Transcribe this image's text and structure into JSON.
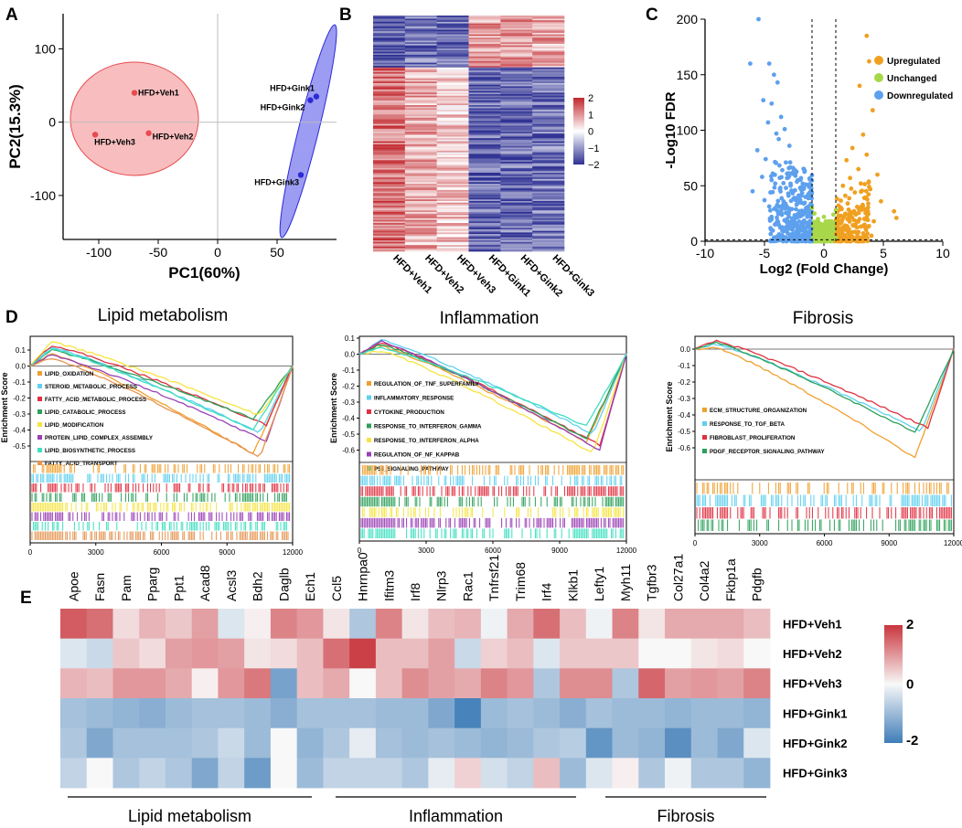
{
  "panels": {
    "A": "A",
    "B": "B",
    "C": "C",
    "D": "D",
    "E": "E"
  },
  "colors": {
    "veh": "#e84a4f",
    "gink": "#2b2bd6",
    "up": "#f0a020",
    "unchanged": "#a8d84a",
    "down": "#5da0ee",
    "heat_hi": "#c1272d",
    "heat_mid": "#ffffff",
    "heat_lo": "#2e3192",
    "e_hi": "#c9353d",
    "e_lo": "#3f7db8"
  },
  "chart_data": [
    {
      "id": "A",
      "type": "scatter",
      "title": "",
      "xlabel": "PC1(60%)",
      "ylabel": "PC2(15.3%)",
      "xlim": [
        -130,
        100
      ],
      "ylim": [
        -160,
        148
      ],
      "xticks": [
        -100,
        -50,
        0,
        50
      ],
      "yticks": [
        100,
        0,
        -100
      ],
      "points": [
        {
          "label": "HFD+Veh1",
          "x": -70,
          "y": 40,
          "group": "veh"
        },
        {
          "label": "HFD+Veh2",
          "x": -58,
          "y": -15,
          "group": "veh"
        },
        {
          "label": "HFD+Veh3",
          "x": -103,
          "y": -17,
          "group": "veh"
        },
        {
          "label": "HFD+Gink1",
          "x": 83,
          "y": 35,
          "group": "gink"
        },
        {
          "label": "HFD+Gink2",
          "x": 78,
          "y": 30,
          "group": "gink"
        },
        {
          "label": "HFD+Gink3",
          "x": 70,
          "y": -72,
          "group": "gink"
        }
      ]
    },
    {
      "id": "B",
      "type": "heatmap",
      "columns": [
        "HFD+Veh1",
        "HFD+Veh2",
        "HFD+Veh3",
        "HFD+Gink1",
        "HFD+Gink2",
        "HFD+Gink3"
      ],
      "blocks": [
        {
          "genes_fraction": 0.22,
          "values": [
            -1.5,
            -1.3,
            -1.4,
            0.9,
            1.0,
            0.8
          ]
        },
        {
          "genes_fraction": 0.78,
          "values": [
            1.3,
            0.8,
            0.5,
            -1.5,
            -1.4,
            -1.3
          ]
        }
      ],
      "legend_ticks": [
        "2",
        "1",
        "0",
        "−1",
        "−2"
      ]
    },
    {
      "id": "C",
      "type": "scatter",
      "subtype": "volcano",
      "xlabel": "Log2 (Fold Change)",
      "ylabel": "-Log10 FDR",
      "xlim": [
        -10,
        10
      ],
      "ylim": [
        0,
        200
      ],
      "xticks": [
        -10,
        -5,
        0,
        5,
        10
      ],
      "yticks": [
        0,
        50,
        100,
        150,
        200
      ],
      "thresholds": {
        "fc": 1,
        "fdr": 1.3
      },
      "legend": [
        "Upregulated",
        "Unchanged",
        "Downregulated"
      ],
      "downregulated": [
        [
          -6.2,
          160
        ],
        [
          -5.5,
          200
        ],
        [
          -4.6,
          160
        ],
        [
          -4.2,
          150
        ],
        [
          -3.9,
          143
        ],
        [
          -5.1,
          127
        ],
        [
          -4.4,
          124
        ],
        [
          -3.6,
          112
        ],
        [
          -4.7,
          107
        ],
        [
          -3.3,
          101
        ],
        [
          -4.0,
          97
        ],
        [
          -3.8,
          92
        ],
        [
          -5.6,
          82
        ],
        [
          -2.9,
          86
        ],
        [
          -4.9,
          74
        ],
        [
          -3.2,
          71
        ],
        [
          -3.5,
          64
        ],
        [
          -2.6,
          66
        ],
        [
          -4.3,
          61
        ],
        [
          -5.2,
          58
        ],
        [
          -6.0,
          45
        ],
        [
          -3.1,
          57
        ],
        [
          -2.4,
          59
        ],
        [
          -4.1,
          52
        ],
        [
          -2.8,
          50
        ],
        [
          -2.2,
          55
        ],
        [
          -3.7,
          47
        ],
        [
          -2.0,
          48
        ],
        [
          -4.5,
          44
        ],
        [
          -3.0,
          43
        ],
        [
          -1.9,
          41
        ],
        [
          -2.5,
          39
        ],
        [
          -5.0,
          37
        ],
        [
          -3.4,
          36
        ],
        [
          -1.7,
          34
        ],
        [
          -2.3,
          33
        ],
        [
          -4.0,
          31
        ],
        [
          -1.5,
          30
        ],
        [
          -2.7,
          29
        ],
        [
          -3.6,
          27
        ],
        [
          -1.8,
          26
        ],
        [
          -2.1,
          24
        ],
        [
          -4.4,
          22
        ],
        [
          -1.4,
          22
        ],
        [
          -3.1,
          20
        ],
        [
          -2.5,
          19
        ],
        [
          -1.6,
          17
        ],
        [
          -3.8,
          15
        ],
        [
          -2.2,
          14
        ],
        [
          -1.3,
          13
        ],
        [
          -2.9,
          12
        ],
        [
          -1.9,
          10
        ],
        [
          -3.4,
          9
        ],
        [
          -1.5,
          8
        ],
        [
          -2.4,
          6
        ],
        [
          -1.2,
          5
        ],
        [
          -2.7,
          3
        ],
        [
          -1.8,
          2
        ]
      ],
      "upregulated": [
        [
          3.6,
          185
        ],
        [
          3.8,
          162
        ],
        [
          3.0,
          140
        ],
        [
          4.1,
          118
        ],
        [
          3.3,
          96
        ],
        [
          2.4,
          84
        ],
        [
          3.6,
          78
        ],
        [
          1.9,
          73
        ],
        [
          2.9,
          65
        ],
        [
          4.5,
          60
        ],
        [
          2.2,
          57
        ],
        [
          3.1,
          52
        ],
        [
          1.6,
          50
        ],
        [
          3.9,
          47
        ],
        [
          2.6,
          44
        ],
        [
          1.8,
          41
        ],
        [
          3.4,
          39
        ],
        [
          4.8,
          36
        ],
        [
          2.0,
          34
        ],
        [
          2.8,
          31
        ],
        [
          1.5,
          29
        ],
        [
          3.7,
          27
        ],
        [
          5.9,
          27
        ],
        [
          6.1,
          21
        ],
        [
          2.3,
          25
        ],
        [
          1.7,
          22
        ],
        [
          3.0,
          20
        ],
        [
          4.2,
          18
        ],
        [
          1.4,
          16
        ],
        [
          2.5,
          14
        ],
        [
          3.5,
          12
        ],
        [
          1.9,
          10
        ],
        [
          2.7,
          8
        ],
        [
          1.3,
          6
        ],
        [
          4.0,
          5
        ],
        [
          2.1,
          3
        ]
      ],
      "unchanged": [
        [
          -1.0,
          30
        ],
        [
          -0.8,
          25
        ],
        [
          -0.5,
          20
        ],
        [
          0.0,
          22
        ],
        [
          0.4,
          18
        ],
        [
          0.8,
          24
        ],
        [
          1.0,
          28
        ],
        [
          -0.9,
          14
        ],
        [
          -0.3,
          12
        ],
        [
          0.3,
          10
        ],
        [
          0.7,
          13
        ],
        [
          -0.6,
          8
        ],
        [
          0.0,
          6
        ],
        [
          0.5,
          5
        ],
        [
          -1.0,
          4
        ],
        [
          1.0,
          3
        ],
        [
          -0.4,
          2
        ],
        [
          0.6,
          1
        ]
      ]
    },
    {
      "id": "D1",
      "type": "line",
      "title": "Lipid metabolism",
      "ylabel": "Enrichment Score",
      "xlim": [
        0,
        12000
      ],
      "ylim": [
        -0.6,
        0.15
      ],
      "xticks": [
        "0",
        "3000",
        "6000",
        "9000",
        "12000"
      ],
      "yticks": [
        "0.1",
        "0.0",
        "-0.1",
        "-0.2",
        "-0.3",
        "-0.4",
        "-0.5"
      ],
      "series": [
        {
          "name": "LIPID_OXIDATION",
          "color": "#f0a030",
          "min": -0.55,
          "peak": 0.08
        },
        {
          "name": "STEROID_METABOLIC_PROCESS",
          "color": "#5fd0ef",
          "min": -0.42,
          "peak": 0.12
        },
        {
          "name": "FATTY_ACID_METABOLIC_PROCESS",
          "color": "#e03040",
          "min": -0.37,
          "peak": 0.13
        },
        {
          "name": "LIPID_CATABOLIC_PROCESS",
          "color": "#2ca05a",
          "min": -0.33,
          "peak": 0.1
        },
        {
          "name": "LIPID_MODIFICATION",
          "color": "#f5e440",
          "min": -0.31,
          "peak": 0.15
        },
        {
          "name": "PROTEIN_LIPID_COMPLEX_ASSEMBLY",
          "color": "#9a3fb5",
          "min": -0.47,
          "peak": 0.07
        },
        {
          "name": "LIPID_BIOSYNTHETIC_PROCESS",
          "color": "#3ddfc0",
          "min": -0.4,
          "peak": 0.11
        },
        {
          "name": "FATTY_ACID_TRANSPORT",
          "color": "#e59450",
          "min": -0.57,
          "peak": 0.05
        }
      ]
    },
    {
      "id": "D2",
      "type": "line",
      "title": "Inflammation",
      "ylabel": "Enrichment Score",
      "xlim": [
        0,
        12000
      ],
      "ylim": [
        -0.65,
        0.1
      ],
      "xticks": [
        "0",
        "3000",
        "6000",
        "9000",
        "12000"
      ],
      "yticks": [
        "0.1",
        "0.0",
        "-0.1",
        "-0.2",
        "-0.3",
        "-0.4",
        "-0.5",
        "-0.6"
      ],
      "series": [
        {
          "name": "REGULATION_OF_TNF_SUPERFAMILY",
          "color": "#f0a030",
          "min": -0.55,
          "peak": 0.05
        },
        {
          "name": "INFLAMMATORY_RESPONSE",
          "color": "#5fd0ef",
          "min": -0.5,
          "peak": 0.09
        },
        {
          "name": "CYTOKINE_PRODUCTION",
          "color": "#e03040",
          "min": -0.57,
          "peak": 0.07
        },
        {
          "name": "RESPONSE_TO_INTERFERON_GAMMA",
          "color": "#2ca05a",
          "min": -0.53,
          "peak": 0.06
        },
        {
          "name": "RESPONSE_TO_INTERFERON_ALPHA",
          "color": "#f5e440",
          "min": -0.62,
          "peak": 0.02
        },
        {
          "name": "REGULATION_OF_NF_KAPPAB",
          "color": "#9a3fb5",
          "min": -0.6,
          "peak": 0.08
        },
        {
          "name": "P53_SIGNALING_PATHWAY",
          "color": "#3ddfc0",
          "min": -0.45,
          "peak": 0.04
        }
      ]
    },
    {
      "id": "D3",
      "type": "line",
      "title": "Fibrosis",
      "ylabel": "Enrichment Score",
      "xlim": [
        0,
        12000
      ],
      "ylim": [
        -0.7,
        0.05
      ],
      "xticks": [
        "0",
        "3000",
        "6000",
        "9000",
        "12000"
      ],
      "yticks": [
        "0.0",
        "-0.1",
        "-0.2",
        "-0.3",
        "-0.4",
        "-0.5",
        "-0.6"
      ],
      "series": [
        {
          "name": "ECM_STRUCTURE_ORGANIZATION",
          "color": "#f0a030",
          "min": -0.66,
          "peak": 0.01
        },
        {
          "name": "RESPONSE_TO_TGF_BETA",
          "color": "#5fd0ef",
          "min": -0.5,
          "peak": 0.03
        },
        {
          "name": "FIBROBLAST_PROLIFERATION",
          "color": "#e03040",
          "min": -0.48,
          "peak": 0.05
        },
        {
          "name": "PDGF_RECEPTOR_SIGNALING_PATHWAY",
          "color": "#2ca05a",
          "min": -0.51,
          "peak": 0.04
        }
      ]
    },
    {
      "id": "E",
      "type": "heatmap",
      "columns": [
        "Apoe",
        "Fasn",
        "Pam",
        "Pparg",
        "Ppt1",
        "Acad8",
        "Acsl3",
        "Bdh2",
        "Daglb",
        "Ech1",
        "Ccl5",
        "Hnrnpa0",
        "Ifitm3",
        "Irf8",
        "Nlrp3",
        "Rac1",
        "Tnfrsf21",
        "Trim68",
        "Irf4",
        "Klkb1",
        "Lefty1",
        "Myh11",
        "Tgfbr3",
        "Col27a1",
        "Col4a2",
        "Fkbp1a",
        "Pdgfb"
      ],
      "rows": [
        "HFD+Veh1",
        "HFD+Veh2",
        "HFD+Veh3",
        "HFD+Gink1",
        "HFD+Gink2",
        "HFD+Gink3"
      ],
      "values": [
        [
          1.6,
          1.4,
          0.3,
          0.7,
          0.5,
          0.9,
          -0.3,
          0.1,
          1.2,
          1.0,
          0.2,
          -0.8,
          1.2,
          0.2,
          0.6,
          0.7,
          -0.1,
          0.8,
          1.4,
          0.6,
          -0.1,
          1.2,
          0.2,
          0.8,
          0.8,
          0.8,
          0.6
        ],
        [
          -0.3,
          -0.5,
          0.5,
          0.3,
          0.9,
          1.0,
          0.9,
          0.2,
          0.3,
          0.6,
          1.4,
          1.9,
          0.6,
          0.6,
          0.9,
          -0.5,
          0.4,
          0.6,
          -0.3,
          0.5,
          0.5,
          0.5,
          0.0,
          0.0,
          0.2,
          0.3,
          0.0
        ],
        [
          0.7,
          0.6,
          1.0,
          1.0,
          0.8,
          0.1,
          1.0,
          1.3,
          -1.4,
          0.6,
          0.8,
          0.0,
          0.6,
          1.1,
          0.9,
          0.8,
          1.2,
          1.0,
          -0.8,
          1.1,
          1.1,
          -0.8,
          1.5,
          0.9,
          1.0,
          0.9,
          1.2
        ],
        [
          -0.9,
          -1.0,
          -1.1,
          -1.2,
          -1.0,
          -0.9,
          -0.9,
          -1.0,
          -1.2,
          -0.9,
          -0.9,
          -0.9,
          -1.0,
          -1.0,
          -1.3,
          -1.9,
          -1.0,
          -0.9,
          -1.0,
          -1.2,
          -0.9,
          -1.0,
          -1.0,
          -1.1,
          -1.0,
          -1.0,
          -1.1
        ],
        [
          -0.8,
          -1.3,
          -0.9,
          -0.9,
          -0.9,
          -0.8,
          -0.5,
          -1.0,
          0.0,
          -1.1,
          -0.8,
          -0.2,
          -0.9,
          -1.0,
          -0.9,
          -1.0,
          -1.1,
          -1.0,
          -0.8,
          -0.7,
          -1.6,
          -1.0,
          -1.1,
          -1.7,
          -1.0,
          -1.3,
          -0.3
        ],
        [
          -0.6,
          0.0,
          -0.8,
          -0.6,
          -0.8,
          -1.3,
          -0.6,
          -1.5,
          0.0,
          -1.0,
          -0.6,
          -0.6,
          -0.6,
          -0.8,
          -0.2,
          0.4,
          -0.4,
          -0.6,
          0.6,
          -1.0,
          -0.3,
          0.1,
          -0.8,
          -0.1,
          -0.8,
          -0.8,
          -1.1
        ]
      ],
      "legend_ticks": [
        "2",
        "0",
        "-2"
      ],
      "groups": [
        {
          "label": "Lipid metabolism",
          "from": 0,
          "to": 9
        },
        {
          "label": "Inflammation",
          "from": 10,
          "to": 18
        },
        {
          "label": "Fibrosis",
          "from": 19,
          "to": 26
        }
      ]
    }
  ]
}
